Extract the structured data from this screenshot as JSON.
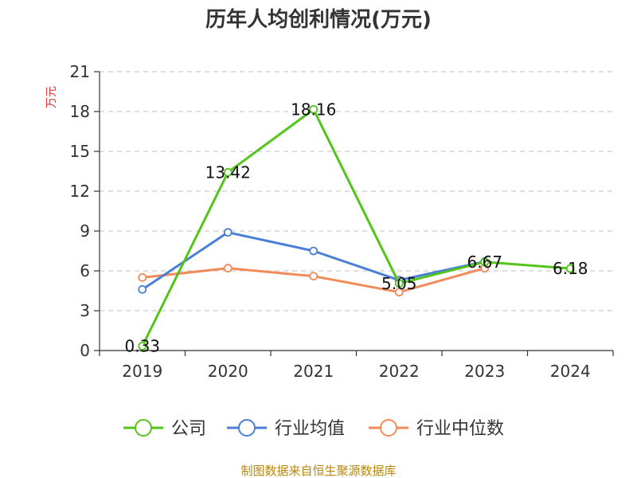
{
  "colors": {
    "company": "#52c41a",
    "industry_avg": "#4a7fd8",
    "industry_median": "#f38b58",
    "ylabel": "#e03a3a",
    "source": "#b8860b",
    "grid": "#cccccc",
    "axis": "#333333"
  },
  "source_text": "制图数据来自恒生聚源数据库",
  "legend": [
    "公司",
    "行业均值",
    "行业中位数"
  ],
  "chart_data": {
    "type": "line",
    "title": "历年人均创利情况(万元)",
    "xlabel": "",
    "ylabel": "万元",
    "categories": [
      "2019",
      "2020",
      "2021",
      "2022",
      "2023",
      "2024"
    ],
    "ylim": [
      0,
      21
    ],
    "yticks": [
      0,
      3,
      6,
      9,
      12,
      15,
      18,
      21
    ],
    "grid": true,
    "legend_position": "bottom",
    "series": [
      {
        "name": "公司",
        "values": [
          0.33,
          13.42,
          18.16,
          5.05,
          6.67,
          6.18
        ],
        "labels": [
          "0.33",
          "13.42",
          "18.16",
          "5.05",
          "6.67",
          "6.18"
        ]
      },
      {
        "name": "行业均值",
        "values": [
          4.6,
          8.9,
          7.5,
          5.3,
          6.7,
          null
        ]
      },
      {
        "name": "行业中位数",
        "values": [
          5.5,
          6.2,
          5.6,
          4.4,
          6.2,
          null
        ]
      }
    ]
  }
}
